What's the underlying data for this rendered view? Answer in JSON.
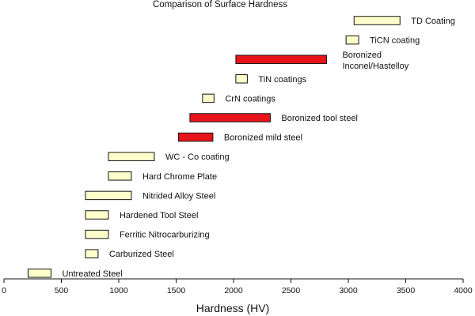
{
  "chart_data": {
    "type": "bar",
    "orientation": "horizontal-range",
    "title": "Comparison of Surface Hardness",
    "xlabel": "Hardness (HV)",
    "ylabel": "",
    "xlim": [
      0,
      4000
    ],
    "xticks": [
      0,
      500,
      1000,
      1500,
      2000,
      2500,
      3000,
      3500,
      4000
    ],
    "grid": false,
    "legend": "none",
    "colors": {
      "standard": "#ffffcc",
      "boronized": "#e8141a",
      "outline": "#111111"
    },
    "series": [
      {
        "label": "TD Coating",
        "start": 3050,
        "end": 3450,
        "color": "standard"
      },
      {
        "label": "TiCN coating",
        "start": 2980,
        "end": 3090,
        "color": "standard"
      },
      {
        "label": "Boronized\nInconel/Hastelloy",
        "start": 2020,
        "end": 2810,
        "color": "boronized"
      },
      {
        "label": "TiN coatings",
        "start": 2020,
        "end": 2120,
        "color": "standard"
      },
      {
        "label": "CrN coatings",
        "start": 1730,
        "end": 1830,
        "color": "standard"
      },
      {
        "label": "Boronized tool steel",
        "start": 1620,
        "end": 2320,
        "color": "boronized"
      },
      {
        "label": "Boronized mild steel",
        "start": 1520,
        "end": 1820,
        "color": "boronized"
      },
      {
        "label": "WC - Co coating",
        "start": 910,
        "end": 1310,
        "color": "standard"
      },
      {
        "label": "Hard Chrome Plate",
        "start": 910,
        "end": 1110,
        "color": "standard"
      },
      {
        "label": "Nitrided Alloy Steel",
        "start": 710,
        "end": 1110,
        "color": "standard"
      },
      {
        "label": "Hardened Tool Steel",
        "start": 710,
        "end": 910,
        "color": "standard"
      },
      {
        "label": "Ferritic Nitrocarburizing",
        "start": 710,
        "end": 910,
        "color": "standard"
      },
      {
        "label": "Carburized Steel",
        "start": 710,
        "end": 820,
        "color": "standard"
      },
      {
        "label": "Untreated Steel",
        "start": 210,
        "end": 410,
        "color": "standard"
      }
    ]
  }
}
